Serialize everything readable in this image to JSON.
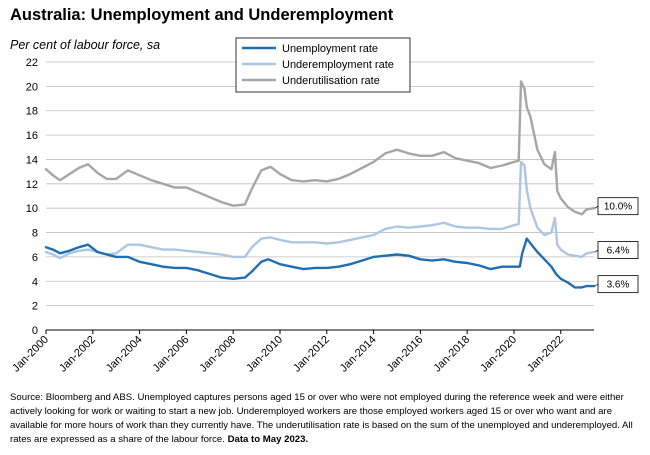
{
  "chart_data": {
    "type": "line",
    "title": "Australia: Unemployment and Underemployment",
    "subtitle": "Per cent of labour force, sa",
    "ylim": [
      0,
      22
    ],
    "yticks": [
      0,
      2,
      4,
      6,
      8,
      10,
      12,
      14,
      16,
      18,
      20,
      22
    ],
    "xlim": [
      2000.0,
      2023.42
    ],
    "xticks": [
      {
        "value": 2000,
        "label": "Jan-2000"
      },
      {
        "value": 2002,
        "label": "Jan-2002"
      },
      {
        "value": 2004,
        "label": "Jan-2004"
      },
      {
        "value": 2006,
        "label": "Jan-2006"
      },
      {
        "value": 2008,
        "label": "Jan-2008"
      },
      {
        "value": 2010,
        "label": "Jan-2010"
      },
      {
        "value": 2012,
        "label": "Jan-2012"
      },
      {
        "value": 2014,
        "label": "Jan-2014"
      },
      {
        "value": 2016,
        "label": "Jan-2016"
      },
      {
        "value": 2018,
        "label": "Jan-2018"
      },
      {
        "value": 2020,
        "label": "Jan-2020"
      },
      {
        "value": 2022,
        "label": "Jan-2022"
      }
    ],
    "grid": "horizontal",
    "legend_position": "top-center",
    "series": [
      {
        "name": "Unemployment rate",
        "color": "#1f6fb0",
        "end_label": "3.6%",
        "points": [
          [
            2000.0,
            6.8
          ],
          [
            2000.3,
            6.6
          ],
          [
            2000.6,
            6.3
          ],
          [
            2001.0,
            6.5
          ],
          [
            2001.4,
            6.8
          ],
          [
            2001.8,
            7.0
          ],
          [
            2002.2,
            6.4
          ],
          [
            2002.6,
            6.2
          ],
          [
            2003.0,
            6.0
          ],
          [
            2003.5,
            6.0
          ],
          [
            2004.0,
            5.6
          ],
          [
            2004.5,
            5.4
          ],
          [
            2005.0,
            5.2
          ],
          [
            2005.5,
            5.1
          ],
          [
            2006.0,
            5.1
          ],
          [
            2006.5,
            4.9
          ],
          [
            2007.0,
            4.6
          ],
          [
            2007.5,
            4.3
          ],
          [
            2008.0,
            4.2
          ],
          [
            2008.5,
            4.3
          ],
          [
            2008.8,
            4.8
          ],
          [
            2009.2,
            5.6
          ],
          [
            2009.5,
            5.8
          ],
          [
            2010.0,
            5.4
          ],
          [
            2010.5,
            5.2
          ],
          [
            2011.0,
            5.0
          ],
          [
            2011.5,
            5.1
          ],
          [
            2012.0,
            5.1
          ],
          [
            2012.5,
            5.2
          ],
          [
            2013.0,
            5.4
          ],
          [
            2013.5,
            5.7
          ],
          [
            2014.0,
            6.0
          ],
          [
            2014.5,
            6.1
          ],
          [
            2015.0,
            6.2
          ],
          [
            2015.5,
            6.1
          ],
          [
            2016.0,
            5.8
          ],
          [
            2016.5,
            5.7
          ],
          [
            2017.0,
            5.8
          ],
          [
            2017.5,
            5.6
          ],
          [
            2018.0,
            5.5
          ],
          [
            2018.5,
            5.3
          ],
          [
            2019.0,
            5.0
          ],
          [
            2019.5,
            5.2
          ],
          [
            2020.0,
            5.2
          ],
          [
            2020.25,
            5.2
          ],
          [
            2020.35,
            6.3
          ],
          [
            2020.55,
            7.5
          ],
          [
            2020.75,
            7.0
          ],
          [
            2021.0,
            6.4
          ],
          [
            2021.3,
            5.8
          ],
          [
            2021.6,
            5.2
          ],
          [
            2021.8,
            4.6
          ],
          [
            2022.0,
            4.2
          ],
          [
            2022.3,
            3.9
          ],
          [
            2022.6,
            3.5
          ],
          [
            2022.9,
            3.5
          ],
          [
            2023.1,
            3.6
          ],
          [
            2023.42,
            3.6
          ]
        ]
      },
      {
        "name": "Underemployment rate",
        "color": "#aec6e2",
        "end_label": "6.4%",
        "points": [
          [
            2000.0,
            6.4
          ],
          [
            2000.3,
            6.2
          ],
          [
            2000.6,
            5.9
          ],
          [
            2001.0,
            6.3
          ],
          [
            2001.4,
            6.5
          ],
          [
            2001.8,
            6.6
          ],
          [
            2002.2,
            6.4
          ],
          [
            2002.6,
            6.2
          ],
          [
            2003.0,
            6.3
          ],
          [
            2003.5,
            7.0
          ],
          [
            2004.0,
            7.0
          ],
          [
            2004.5,
            6.8
          ],
          [
            2005.0,
            6.6
          ],
          [
            2005.5,
            6.6
          ],
          [
            2006.0,
            6.5
          ],
          [
            2006.5,
            6.4
          ],
          [
            2007.0,
            6.3
          ],
          [
            2007.5,
            6.2
          ],
          [
            2008.0,
            6.0
          ],
          [
            2008.5,
            6.0
          ],
          [
            2008.8,
            6.8
          ],
          [
            2009.2,
            7.5
          ],
          [
            2009.6,
            7.6
          ],
          [
            2010.0,
            7.4
          ],
          [
            2010.5,
            7.2
          ],
          [
            2011.0,
            7.2
          ],
          [
            2011.5,
            7.2
          ],
          [
            2012.0,
            7.1
          ],
          [
            2012.5,
            7.2
          ],
          [
            2013.0,
            7.4
          ],
          [
            2013.5,
            7.6
          ],
          [
            2014.0,
            7.8
          ],
          [
            2014.5,
            8.3
          ],
          [
            2015.0,
            8.5
          ],
          [
            2015.5,
            8.4
          ],
          [
            2016.0,
            8.5
          ],
          [
            2016.5,
            8.6
          ],
          [
            2017.0,
            8.8
          ],
          [
            2017.5,
            8.5
          ],
          [
            2018.0,
            8.4
          ],
          [
            2018.5,
            8.4
          ],
          [
            2019.0,
            8.3
          ],
          [
            2019.5,
            8.3
          ],
          [
            2020.0,
            8.6
          ],
          [
            2020.2,
            8.7
          ],
          [
            2020.3,
            13.8
          ],
          [
            2020.45,
            13.5
          ],
          [
            2020.55,
            11.5
          ],
          [
            2020.7,
            10.0
          ],
          [
            2021.0,
            8.4
          ],
          [
            2021.3,
            7.8
          ],
          [
            2021.6,
            8.0
          ],
          [
            2021.75,
            9.2
          ],
          [
            2021.85,
            7.0
          ],
          [
            2022.0,
            6.6
          ],
          [
            2022.3,
            6.2
          ],
          [
            2022.6,
            6.1
          ],
          [
            2022.9,
            6.0
          ],
          [
            2023.1,
            6.3
          ],
          [
            2023.42,
            6.4
          ]
        ]
      },
      {
        "name": "Underutilisation rate",
        "color": "#a6a6a6",
        "end_label": "10.0%",
        "points": [
          [
            2000.0,
            13.2
          ],
          [
            2000.3,
            12.7
          ],
          [
            2000.6,
            12.3
          ],
          [
            2001.0,
            12.8
          ],
          [
            2001.4,
            13.3
          ],
          [
            2001.8,
            13.6
          ],
          [
            2002.2,
            12.9
          ],
          [
            2002.6,
            12.4
          ],
          [
            2003.0,
            12.4
          ],
          [
            2003.5,
            13.1
          ],
          [
            2004.0,
            12.7
          ],
          [
            2004.5,
            12.3
          ],
          [
            2005.0,
            12.0
          ],
          [
            2005.5,
            11.7
          ],
          [
            2006.0,
            11.7
          ],
          [
            2006.5,
            11.3
          ],
          [
            2007.0,
            10.9
          ],
          [
            2007.5,
            10.5
          ],
          [
            2008.0,
            10.2
          ],
          [
            2008.5,
            10.3
          ],
          [
            2008.8,
            11.6
          ],
          [
            2009.2,
            13.1
          ],
          [
            2009.6,
            13.4
          ],
          [
            2010.0,
            12.8
          ],
          [
            2010.5,
            12.3
          ],
          [
            2011.0,
            12.2
          ],
          [
            2011.5,
            12.3
          ],
          [
            2012.0,
            12.2
          ],
          [
            2012.5,
            12.4
          ],
          [
            2013.0,
            12.8
          ],
          [
            2013.5,
            13.3
          ],
          [
            2014.0,
            13.8
          ],
          [
            2014.5,
            14.5
          ],
          [
            2015.0,
            14.8
          ],
          [
            2015.5,
            14.5
          ],
          [
            2016.0,
            14.3
          ],
          [
            2016.5,
            14.3
          ],
          [
            2017.0,
            14.6
          ],
          [
            2017.5,
            14.1
          ],
          [
            2018.0,
            13.9
          ],
          [
            2018.5,
            13.7
          ],
          [
            2019.0,
            13.3
          ],
          [
            2019.5,
            13.5
          ],
          [
            2020.0,
            13.8
          ],
          [
            2020.2,
            13.9
          ],
          [
            2020.3,
            20.4
          ],
          [
            2020.45,
            19.8
          ],
          [
            2020.55,
            18.3
          ],
          [
            2020.7,
            17.5
          ],
          [
            2021.0,
            14.8
          ],
          [
            2021.3,
            13.6
          ],
          [
            2021.6,
            13.2
          ],
          [
            2021.75,
            14.6
          ],
          [
            2021.85,
            11.4
          ],
          [
            2022.0,
            10.8
          ],
          [
            2022.3,
            10.1
          ],
          [
            2022.6,
            9.7
          ],
          [
            2022.9,
            9.5
          ],
          [
            2023.1,
            9.9
          ],
          [
            2023.42,
            10.0
          ]
        ]
      }
    ]
  },
  "source": {
    "text": "Source: Bloomberg and ABS. Unemployed captures persons aged 15 or over who were not employed during the reference week and were either actively looking for work or waiting to start a new job.  Underemployed workers are those employed workers aged 15 or over who want and are available for more hours of work than they currently have.  The underutilisation rate is based on the sum of the unemployed and underemployed. All rates are expressed as a share of the labour force. ",
    "bold": "Data to May 2023."
  }
}
